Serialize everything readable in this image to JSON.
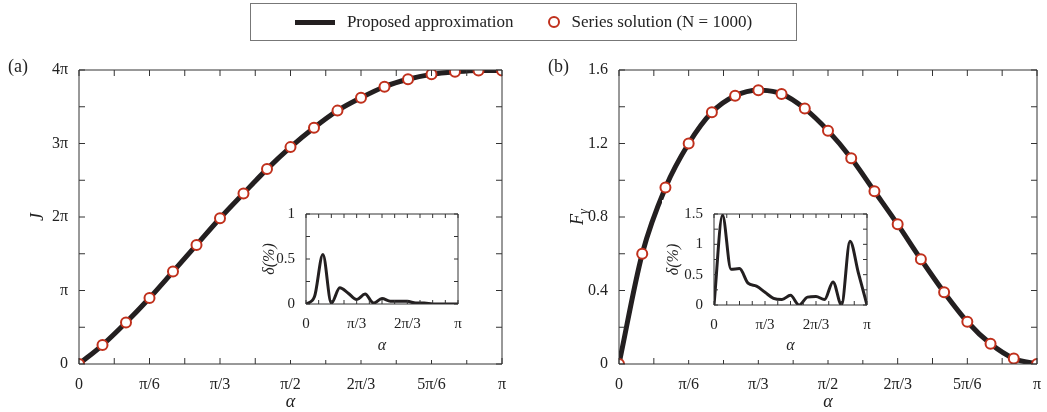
{
  "chart_data": [
    {
      "type": "line",
      "annotations": [
        "(a)"
      ],
      "xlabel": "α",
      "ylabel": "J",
      "legend": "top",
      "grid": false,
      "x": [
        0,
        0.1745,
        0.3491,
        0.5236,
        0.6981,
        0.8727,
        1.0472,
        1.2217,
        1.3963,
        1.5708,
        1.7453,
        1.9199,
        2.0944,
        2.2689,
        2.4435,
        2.618,
        2.7925,
        2.9671,
        3.1416
      ],
      "xlim": [
        0,
        3.1416
      ],
      "xticks": [
        {
          "value": 0,
          "label": "0"
        },
        {
          "value": 0.2618,
          "label": null
        },
        {
          "value": 0.5236,
          "label": "π/6"
        },
        {
          "value": 0.7854,
          "label": null
        },
        {
          "value": 1.0472,
          "label": "π/3"
        },
        {
          "value": 1.309,
          "label": null
        },
        {
          "value": 1.5708,
          "label": "π/2"
        },
        {
          "value": 1.8326,
          "label": null
        },
        {
          "value": 2.0944,
          "label": "2π/3"
        },
        {
          "value": 2.3562,
          "label": null
        },
        {
          "value": 2.618,
          "label": "5π/6"
        },
        {
          "value": 2.8798,
          "label": null
        },
        {
          "value": 3.1416,
          "label": "π"
        }
      ],
      "ylim": [
        0,
        12.5664
      ],
      "yticks": [
        {
          "value": 0,
          "label": "0"
        },
        {
          "value": 1.5708,
          "label": null
        },
        {
          "value": 3.1416,
          "label": "π"
        },
        {
          "value": 4.7124,
          "label": null
        },
        {
          "value": 6.2832,
          "label": "2π"
        },
        {
          "value": 7.854,
          "label": null
        },
        {
          "value": 9.4248,
          "label": "3π"
        },
        {
          "value": 10.9956,
          "label": null
        },
        {
          "value": 12.5664,
          "label": "4π"
        }
      ],
      "series": [
        {
          "name": "Proposed approximation",
          "type": "line",
          "color": "#231f20",
          "values": [
            0,
            0.81,
            1.77,
            2.82,
            3.95,
            5.09,
            6.23,
            7.29,
            8.33,
            9.27,
            10.1,
            10.83,
            11.38,
            11.85,
            12.17,
            12.38,
            12.49,
            12.55,
            12.55
          ]
        },
        {
          "name": "Series solution (N = 1000)",
          "type": "scatter",
          "marker": "circle",
          "color": "#c0301c",
          "values": [
            0,
            0.81,
            1.77,
            2.82,
            3.95,
            5.09,
            6.23,
            7.29,
            8.33,
            9.27,
            10.1,
            10.83,
            11.38,
            11.85,
            12.17,
            12.38,
            12.49,
            12.55,
            12.55
          ]
        }
      ]
    },
    {
      "type": "line",
      "xlabel": "α",
      "ylabel": "δ(%)",
      "grid": false,
      "x": [
        0,
        0.1745,
        0.3491,
        0.5236,
        0.6981,
        0.8727,
        1.0472,
        1.2217,
        1.3963,
        1.5708,
        1.7453,
        1.9199,
        2.0944,
        2.2689,
        2.4435,
        2.618,
        2.7925,
        2.9671,
        3.1416
      ],
      "xlim": [
        0,
        3.1416
      ],
      "xticks": [
        {
          "value": 0,
          "label": "0"
        },
        {
          "value": 0.2618,
          "label": null
        },
        {
          "value": 0.5236,
          "label": null
        },
        {
          "value": 0.7854,
          "label": null
        },
        {
          "value": 1.0472,
          "label": "π/3"
        },
        {
          "value": 1.309,
          "label": null
        },
        {
          "value": 1.5708,
          "label": null
        },
        {
          "value": 1.8326,
          "label": null
        },
        {
          "value": 2.0944,
          "label": "2π/3"
        },
        {
          "value": 2.3562,
          "label": null
        },
        {
          "value": 2.618,
          "label": null
        },
        {
          "value": 2.8798,
          "label": null
        },
        {
          "value": 3.1416,
          "label": "π"
        }
      ],
      "ylim": [
        0,
        1
      ],
      "yticks": [
        {
          "value": 0,
          "label": "0"
        },
        {
          "value": 0.25,
          "label": null
        },
        0.5,
        {
          "value": 0.75,
          "label": null
        },
        1
      ],
      "series": [
        {
          "type": "line",
          "color": "#231f20",
          "values": [
            0,
            0.08,
            0.55,
            0.01,
            0.18,
            0.12,
            0.05,
            0.11,
            0.01,
            0.06,
            0.03,
            0.03,
            0.03,
            0.01,
            0.01,
            0,
            0,
            0,
            0
          ]
        }
      ]
    },
    {
      "type": "line",
      "annotations": [
        "(b)"
      ],
      "xlabel": "α",
      "ylabel": "F$_{γ}$",
      "grid": false,
      "x": [
        0,
        0.1745,
        0.3491,
        0.5236,
        0.6981,
        0.8727,
        1.0472,
        1.2217,
        1.3963,
        1.5708,
        1.7453,
        1.9199,
        2.0944,
        2.2689,
        2.4435,
        2.618,
        2.7925,
        2.9671,
        3.1416
      ],
      "xlim": [
        0,
        3.1416
      ],
      "xticks": [
        {
          "value": 0,
          "label": "0"
        },
        {
          "value": 0.2618,
          "label": null
        },
        {
          "value": 0.5236,
          "label": "π/6"
        },
        {
          "value": 0.7854,
          "label": null
        },
        {
          "value": 1.0472,
          "label": "π/3"
        },
        {
          "value": 1.309,
          "label": null
        },
        {
          "value": 1.5708,
          "label": "π/2"
        },
        {
          "value": 1.8326,
          "label": null
        },
        {
          "value": 2.0944,
          "label": "2π/3"
        },
        {
          "value": 2.3562,
          "label": null
        },
        {
          "value": 2.618,
          "label": "5π/6"
        },
        {
          "value": 2.8798,
          "label": null
        },
        {
          "value": 3.1416,
          "label": "π"
        }
      ],
      "ylim": [
        0,
        1.6
      ],
      "yticks": [
        {
          "value": 0,
          "label": "0"
        },
        {
          "value": 0.2,
          "label": null
        },
        0.4,
        {
          "value": 0.6,
          "label": null
        },
        0.8,
        {
          "value": 1,
          "label": null
        },
        1.2,
        {
          "value": 1.4,
          "label": null
        },
        1.6
      ],
      "series": [
        {
          "type": "line",
          "color": "#231f20",
          "values": [
            0,
            0.6,
            0.96,
            1.2,
            1.37,
            1.46,
            1.49,
            1.47,
            1.39,
            1.27,
            1.12,
            0.94,
            0.76,
            0.57,
            0.39,
            0.23,
            0.11,
            0.03,
            0
          ]
        },
        {
          "type": "scatter",
          "marker": "circle",
          "color": "#c0301c",
          "values": [
            0,
            0.6,
            0.96,
            1.2,
            1.37,
            1.46,
            1.49,
            1.47,
            1.39,
            1.27,
            1.12,
            0.94,
            0.76,
            0.57,
            0.39,
            0.23,
            0.11,
            0.03,
            0
          ]
        }
      ]
    },
    {
      "type": "line",
      "xlabel": "α",
      "ylabel": "δ(%)",
      "grid": false,
      "x": [
        0,
        0.1745,
        0.3491,
        0.5236,
        0.6981,
        0.8727,
        1.0472,
        1.2217,
        1.3963,
        1.5708,
        1.7453,
        1.9199,
        2.0944,
        2.2689,
        2.4435,
        2.618,
        2.7925,
        2.9671,
        3.1416
      ],
      "xlim": [
        0,
        3.1416
      ],
      "xticks": [
        {
          "value": 0,
          "label": "0"
        },
        {
          "value": 0.2618,
          "label": null
        },
        {
          "value": 0.5236,
          "label": null
        },
        {
          "value": 0.7854,
          "label": null
        },
        {
          "value": 1.0472,
          "label": "π/3"
        },
        {
          "value": 1.309,
          "label": null
        },
        {
          "value": 1.5708,
          "label": null
        },
        {
          "value": 1.8326,
          "label": null
        },
        {
          "value": 2.0944,
          "label": "2π/3"
        },
        {
          "value": 2.3562,
          "label": null
        },
        {
          "value": 2.618,
          "label": null
        },
        {
          "value": 2.8798,
          "label": null
        },
        {
          "value": 3.1416,
          "label": "π"
        }
      ],
      "ylim": [
        0,
        1.5
      ],
      "yticks": [
        {
          "value": 0,
          "label": "0"
        },
        {
          "value": 0.25,
          "label": null
        },
        0.5,
        {
          "value": 0.75,
          "label": null
        },
        1,
        {
          "value": 1.25,
          "label": null
        },
        1.5
      ],
      "series": [
        {
          "type": "line",
          "color": "#231f20",
          "values": [
            0,
            1.48,
            0.59,
            0.6,
            0.36,
            0.31,
            0.21,
            0.11,
            0.09,
            0.16,
            0,
            0.13,
            0.14,
            0.09,
            0.38,
            0,
            1.05,
            0.52,
            0
          ]
        }
      ]
    }
  ]
}
